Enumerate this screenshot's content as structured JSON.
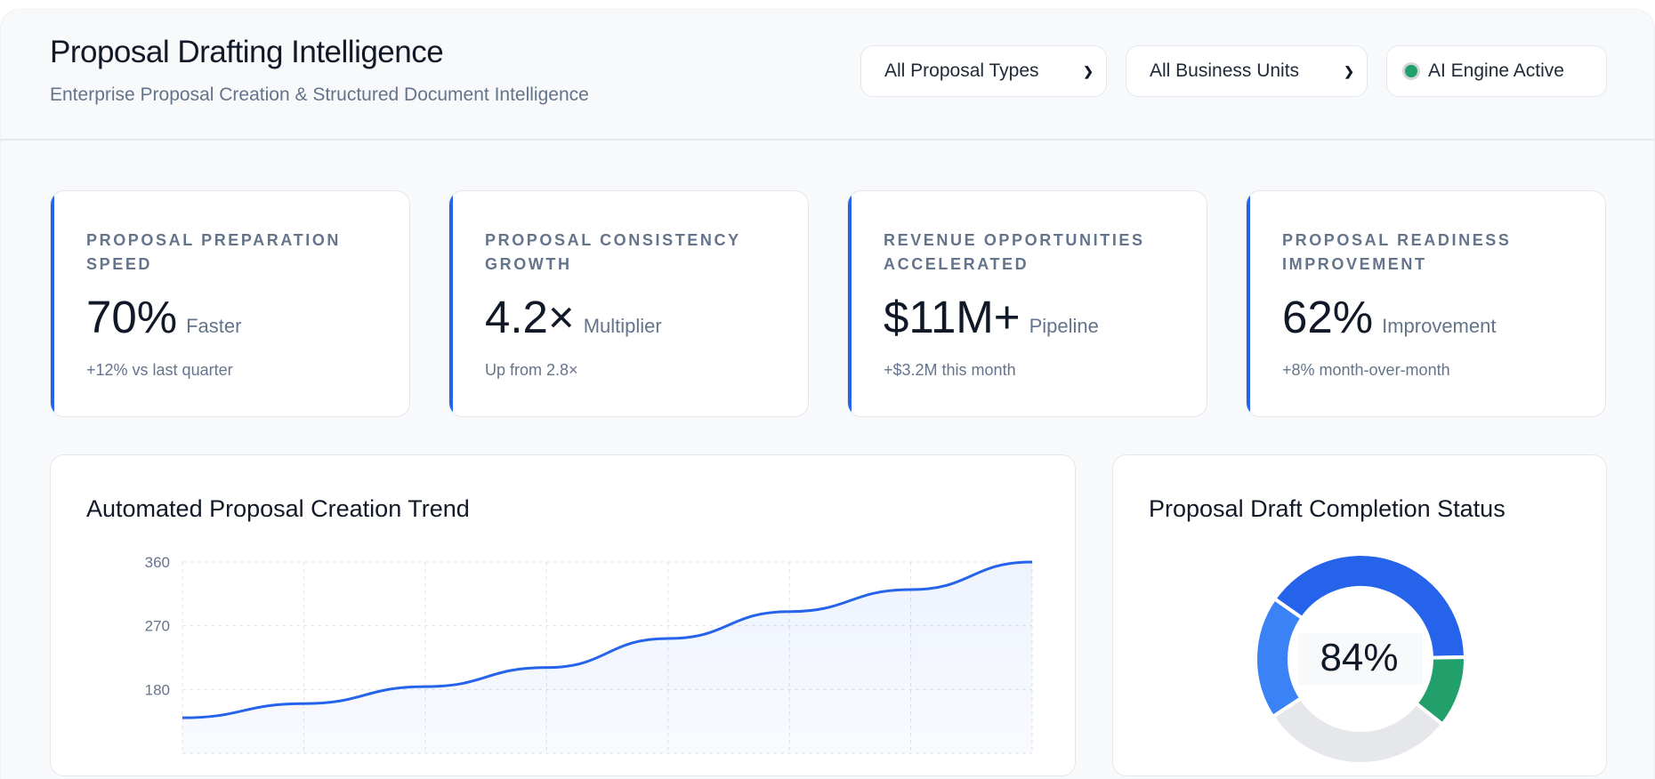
{
  "header": {
    "title": "Proposal Drafting Intelligence",
    "subtitle": "Enterprise Proposal Creation & Structured Document Intelligence"
  },
  "controls": {
    "proposal_type": "All Proposal Types",
    "business_unit": "All Business Units",
    "status": "AI Engine Active",
    "status_color": "#22a06b"
  },
  "kpis": [
    {
      "label": "PROPOSAL PREPARATION SPEED",
      "value": "70%",
      "unit": "Faster",
      "note": "+12% vs last quarter"
    },
    {
      "label": "PROPOSAL CONSISTENCY GROWTH",
      "value": "4.2×",
      "unit": "Multiplier",
      "note": "Up from 2.8×"
    },
    {
      "label": "REVENUE OPPORTUNITIES ACCELERATED",
      "value": "$11M+",
      "unit": "Pipeline",
      "note": "+$3.2M this month"
    },
    {
      "label": "PROPOSAL READINESS IMPROVEMENT",
      "value": "62%",
      "unit": "Improvement",
      "note": "+8% month-over-month"
    }
  ],
  "accent": "#2563eb",
  "chart_data": [
    {
      "type": "area",
      "title": "Automated Proposal Creation Trend",
      "y_ticks": [
        "360",
        "270",
        "180"
      ],
      "ylim": [
        90,
        360
      ],
      "grid": true,
      "values": [
        140,
        160,
        184,
        211,
        252,
        290,
        321,
        360
      ],
      "color": "#2563eb"
    },
    {
      "type": "pie",
      "title": "Proposal Draft Completion Status",
      "center_label": "84%",
      "segments": [
        {
          "value": 40,
          "color": "#2563eb"
        },
        {
          "value": 11,
          "color": "#22a06b"
        },
        {
          "value": 30,
          "color": "#e5e7eb"
        },
        {
          "value": 19,
          "color": "#3b82f6"
        }
      ]
    }
  ]
}
